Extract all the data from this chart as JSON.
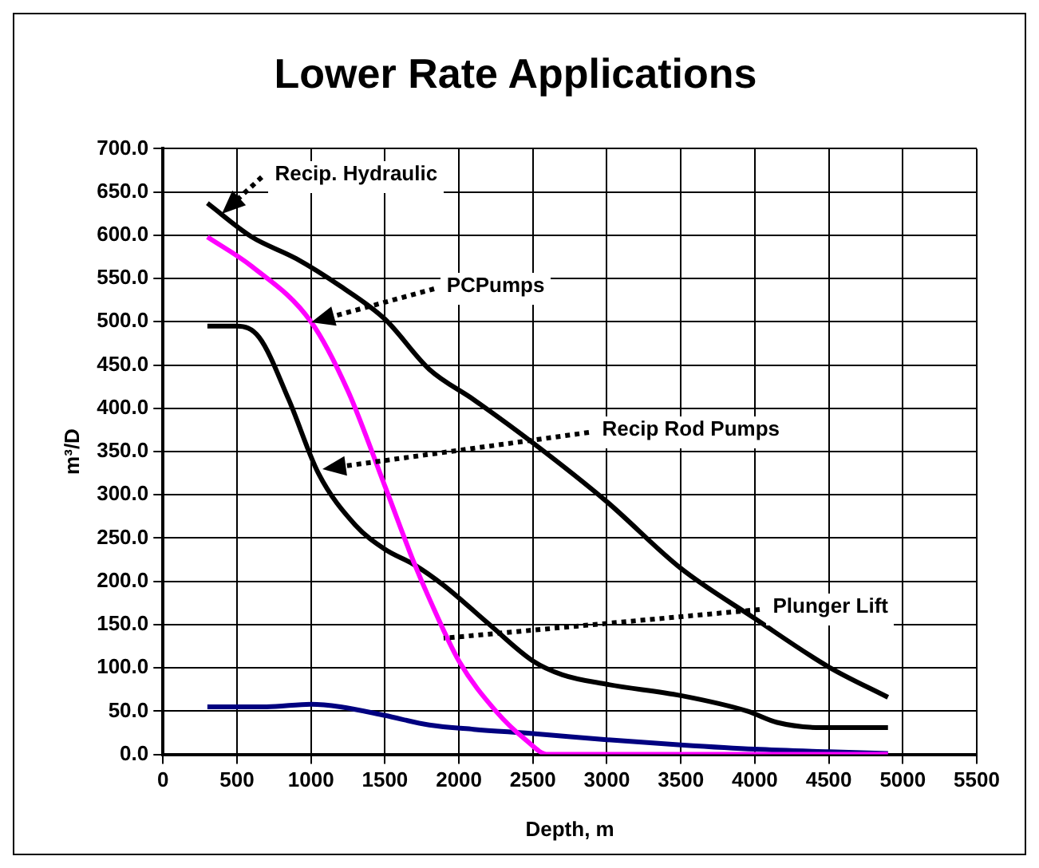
{
  "chart_data": {
    "type": "line",
    "title": "Lower Rate Applications",
    "xlabel": "Depth, m",
    "ylabel": "m³/D",
    "xlim": [
      0,
      5500
    ],
    "xticks": [
      0,
      500,
      1000,
      1500,
      2000,
      2500,
      3000,
      3500,
      4000,
      4500,
      5000,
      5500
    ],
    "ylim": [
      0,
      700
    ],
    "yticks": [
      {
        "value": 0,
        "label": "0.0"
      },
      {
        "value": 50,
        "label": "50.0"
      },
      {
        "value": 100,
        "label": "100.0"
      },
      {
        "value": 150,
        "label": "150.0"
      },
      {
        "value": 200,
        "label": "200.0"
      },
      {
        "value": 250,
        "label": "250.0"
      },
      {
        "value": 300,
        "label": "300.0"
      },
      {
        "value": 350,
        "label": "350.0"
      },
      {
        "value": 400,
        "label": "400.0"
      },
      {
        "value": 450,
        "label": "450.0"
      },
      {
        "value": 500,
        "label": "500.0"
      },
      {
        "value": 550,
        "label": "550.0"
      },
      {
        "value": 600,
        "label": "600.0"
      },
      {
        "value": 650,
        "label": "650.0"
      },
      {
        "value": 700,
        "label": "700.0"
      }
    ],
    "grid": true,
    "legend": false,
    "marker": "none",
    "line_style": "solid",
    "series": [
      {
        "color": "#000000",
        "x": [
          300,
          600,
          900,
          1200,
          1500,
          1800,
          2100,
          2500,
          3000,
          3500,
          4000,
          4500,
          4900
        ],
        "values": [
          637,
          598,
          573,
          541,
          503,
          445,
          410,
          360,
          292,
          215,
          157,
          101,
          66
        ]
      },
      {
        "color": "#ff00ff",
        "x": [
          300,
          600,
          1000,
          1250,
          1500,
          1700,
          1800,
          2000,
          2250,
          2450,
          2600,
          3000,
          4900
        ],
        "values": [
          598,
          564,
          500,
          420,
          310,
          220,
          180,
          108,
          50,
          17,
          0,
          0,
          0
        ]
      },
      {
        "color": "#000000",
        "x": [
          300,
          500,
          650,
          850,
          1050,
          1300,
          1500,
          1700,
          1900,
          2200,
          2500,
          2700,
          3000,
          3500,
          3950,
          4150,
          4450,
          4900
        ],
        "values": [
          495,
          495,
          482,
          410,
          325,
          265,
          237,
          219,
          195,
          151,
          108,
          92,
          81,
          68,
          50,
          37,
          31,
          31
        ]
      },
      {
        "color": "#000080",
        "x": [
          300,
          700,
          1000,
          1200,
          1500,
          1800,
          2100,
          2500,
          3000,
          3500,
          4000,
          4500,
          4900
        ],
        "values": [
          55,
          55,
          58,
          55,
          45,
          34,
          29,
          24,
          17,
          11,
          6,
          3,
          1
        ]
      }
    ],
    "annotations": [
      {
        "text": "Recip. Hydraulic",
        "x": 400,
        "y": 624
      },
      {
        "text": "PCPumps",
        "x": 1000,
        "y": 500
      },
      {
        "text": "Recip Rod Pumps",
        "x": 1080,
        "y": 330
      },
      {
        "text": "Plunger Lift",
        "x": 1900,
        "y": 135
      }
    ]
  }
}
